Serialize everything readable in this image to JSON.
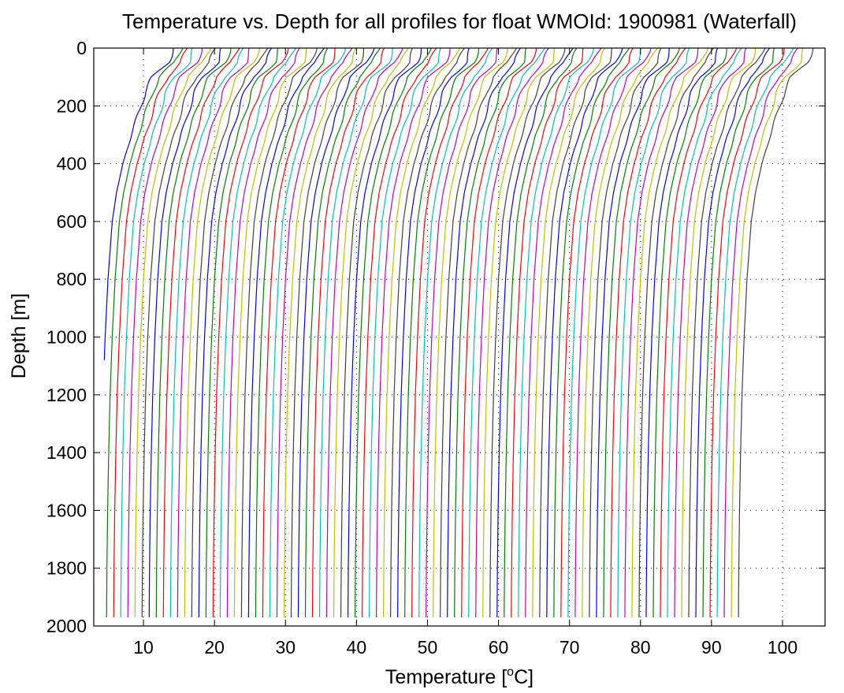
{
  "chart_data": {
    "type": "line",
    "title": "Temperature vs. Depth for all profiles for float WMOId: 1900981 (Waterfall)",
    "xlabel_prefix": "Temperature [",
    "xlabel_sup": "o",
    "xlabel_suffix": "C]",
    "ylabel": "Depth [m]",
    "xlim": [
      3,
      106
    ],
    "ylim": [
      0,
      2000
    ],
    "y_reversed": true,
    "x_ticks": [
      10,
      20,
      30,
      40,
      50,
      60,
      70,
      80,
      90,
      100
    ],
    "y_ticks": [
      0,
      200,
      400,
      600,
      800,
      1000,
      1200,
      1400,
      1600,
      1800,
      2000
    ],
    "grid": true,
    "profile_count": 91,
    "profile_offset_step": 1,
    "first_profile_offset": 0,
    "series_color_cycle": [
      "#0000ff",
      "#008000",
      "#ff0000",
      "#00bfbf",
      "#bf00bf",
      "#bfbf00",
      "#404040"
    ],
    "base_profile": {
      "depth": [
        0,
        50,
        100,
        150,
        200,
        300,
        400,
        500,
        600,
        800,
        1000,
        1200,
        1400,
        1600,
        1800,
        1970
      ],
      "temperature": [
        14.2,
        13.4,
        11.3,
        10.3,
        9.6,
        8.3,
        7.1,
        6.2,
        5.6,
        5.0,
        4.6,
        4.3,
        4.1,
        3.95,
        3.85,
        3.8
      ]
    },
    "first_profile_max_depth": 1085
  }
}
